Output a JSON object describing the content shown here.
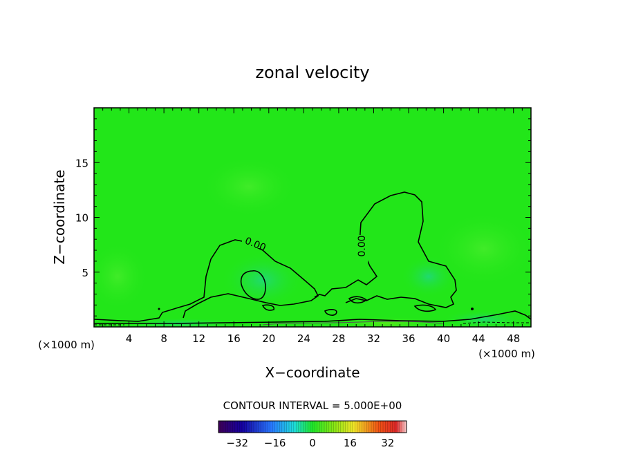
{
  "chart_data": {
    "type": "heatmap",
    "title": "zonal velocity",
    "xlabel": "X−coordinate",
    "ylabel": "Z−coordinate",
    "x_unit_left": "(×1000 m)",
    "x_unit_right": "(×1000 m)",
    "xlim": [
      0,
      50
    ],
    "ylim": [
      0,
      20
    ],
    "x_ticks": [
      4,
      8,
      12,
      16,
      20,
      24,
      28,
      32,
      36,
      40,
      44,
      48
    ],
    "y_ticks": [
      5,
      10,
      15
    ],
    "contour_interval_label": "CONTOUR INTERVAL = 5.000E+00",
    "contour_labels": [
      "0.00",
      "0.00"
    ],
    "colorbar": {
      "range": [
        -40,
        40
      ],
      "ticks": [
        -32,
        -16,
        0,
        16,
        32
      ],
      "tick_labels": [
        "−32",
        "−16",
        "0",
        "16",
        "32"
      ]
    },
    "background_color": "#22e619",
    "grid": false
  }
}
